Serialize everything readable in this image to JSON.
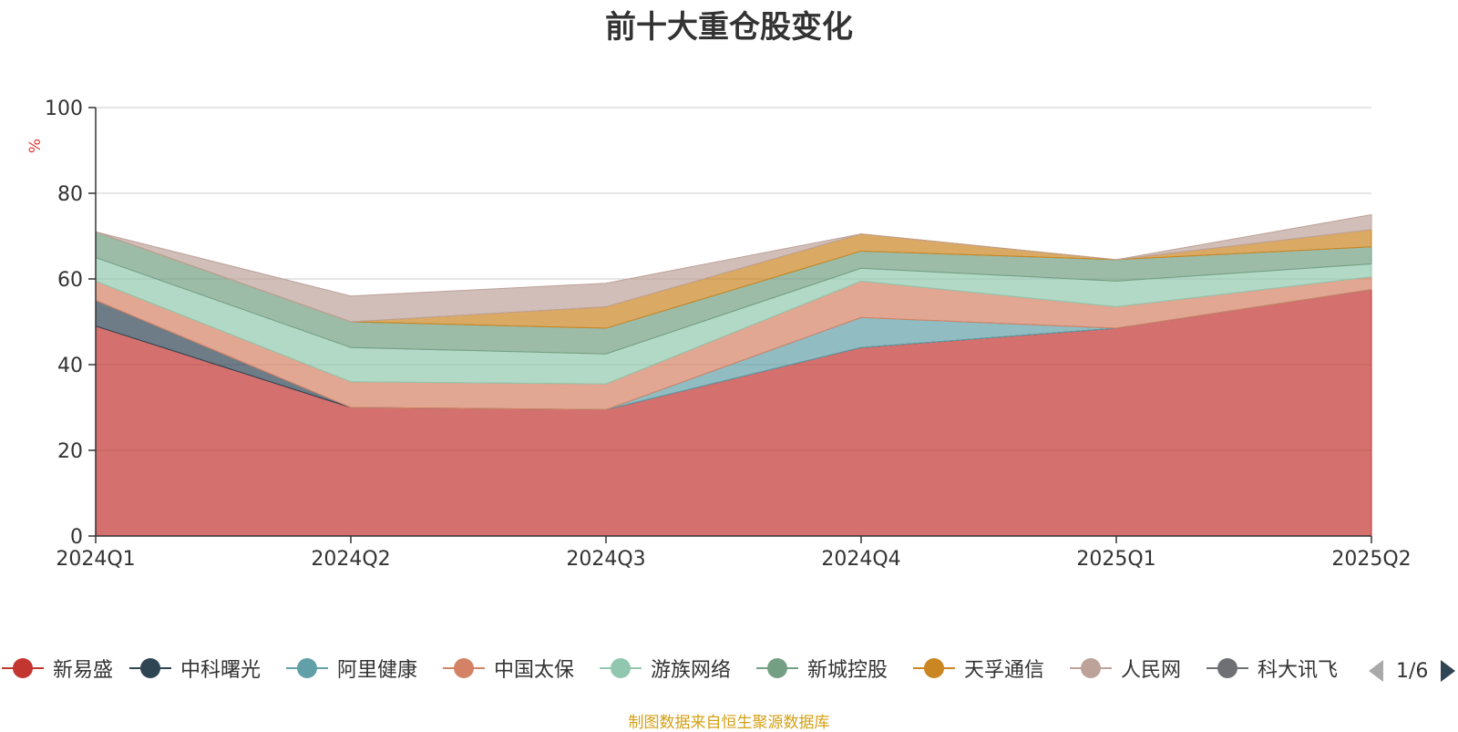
{
  "chart_data": {
    "type": "area",
    "stacked": true,
    "title": "前十大重仓股变化",
    "ylabel": "%",
    "xlabel": "",
    "ylim": [
      0,
      100
    ],
    "yticks": [
      "0",
      "20",
      "40",
      "60",
      "80",
      "100"
    ],
    "categories": [
      "2024Q1",
      "2024Q2",
      "2024Q3",
      "2024Q4",
      "2025Q1",
      "2025Q2"
    ],
    "grid": true,
    "legend_position": "bottom",
    "series": [
      {
        "name": "新易盛",
        "color": "#c23531",
        "values": [
          49,
          30,
          29.5,
          44,
          48.5,
          57.5
        ]
      },
      {
        "name": "中科曙光",
        "color": "#2f4554",
        "values": [
          6,
          0,
          0,
          0,
          0,
          0
        ]
      },
      {
        "name": "阿里健康",
        "color": "#61a0a8",
        "values": [
          0,
          0,
          0,
          7,
          0,
          0
        ]
      },
      {
        "name": "中国太保",
        "color": "#d48265",
        "values": [
          4.5,
          6,
          6,
          8.5,
          5,
          3
        ]
      },
      {
        "name": "游族网络",
        "color": "#91c7ae",
        "values": [
          5.5,
          8,
          7,
          3,
          6,
          3
        ]
      },
      {
        "name": "新城控股",
        "color": "#749f83",
        "values": [
          6,
          6,
          6,
          4,
          5,
          4
        ]
      },
      {
        "name": "天孚通信",
        "color": "#ca8622",
        "values": [
          0,
          0,
          5,
          4,
          0,
          4
        ]
      },
      {
        "name": "人民网",
        "color": "#bda29a",
        "values": [
          0,
          6,
          5.5,
          0,
          0,
          3.5
        ]
      },
      {
        "name": "科大讯飞",
        "color": "#6e7074",
        "values": [
          0,
          0,
          0,
          0,
          0,
          0
        ]
      }
    ]
  },
  "legend": {
    "items": [
      {
        "label": "新易盛",
        "color": "#c23531"
      },
      {
        "label": "中科曙光",
        "color": "#2f4554"
      },
      {
        "label": "阿里健康",
        "color": "#61a0a8"
      },
      {
        "label": "中国太保",
        "color": "#d48265"
      },
      {
        "label": "游族网络",
        "color": "#91c7ae"
      },
      {
        "label": "新城控股",
        "color": "#749f83"
      },
      {
        "label": "天孚通信",
        "color": "#ca8622"
      },
      {
        "label": "人民网",
        "color": "#bda29a"
      },
      {
        "label": "科大讯飞",
        "color": "#6e7074"
      }
    ],
    "page": "1/6"
  },
  "footer": {
    "source_note": "制图数据来自恒生聚源数据库"
  }
}
